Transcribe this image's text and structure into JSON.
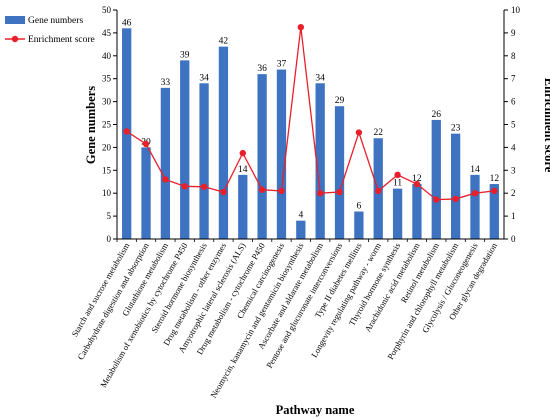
{
  "chart_data": {
    "type": "bar+line",
    "categories": [
      "Starch and sucrose metabolism",
      "Carbohydrate digestion and absorption",
      "Glutathione metabolism",
      "Metabolism of xenobiotics by cytochrome P450",
      "Steroid hormone biosynthesis",
      "Drug metabolism - other enzymes",
      "Amyotrophic lateral sclerosis (ALS)",
      "Drug metabolism - cytochrome P450",
      "Chemical carcinogenesis",
      "Neomycin, kanamycin and gentamicin biosynthesis",
      "Ascorbate and aldarate metabolism",
      "Pentose and glucuronate interconversions",
      "Type II diabetes mellitus",
      "Longevity regulating pathway - worm",
      "Thyroid hormone synthesis",
      "Arachidonic acid metabolism",
      "Retinol metabolism",
      "Porphyrin and chlorophyll metabolism",
      "Glycolysis / Gluconeogenesis",
      "Other glycan degradation"
    ],
    "series": [
      {
        "name": "Gene numbers",
        "kind": "bar",
        "axis": "left",
        "color": "#3d73c1",
        "values": [
          46,
          20,
          33,
          39,
          34,
          42,
          14,
          36,
          37,
          4,
          34,
          29,
          6,
          22,
          11,
          12,
          26,
          23,
          14,
          12
        ],
        "value_labels": [
          "46",
          "20",
          "33",
          "39",
          "34",
          "42",
          "14",
          "36",
          "37",
          "4",
          "34",
          "29",
          "6",
          "22",
          "11",
          "12",
          "26",
          "23",
          "14",
          "12"
        ]
      },
      {
        "name": "Enrichment score",
        "kind": "line",
        "axis": "right",
        "color": "#e8202a",
        "values": [
          4.7,
          4.15,
          2.6,
          2.3,
          2.28,
          2.05,
          3.75,
          2.15,
          2.1,
          9.25,
          2.0,
          2.05,
          4.65,
          2.1,
          2.8,
          2.4,
          1.72,
          1.75,
          2.0,
          2.1
        ]
      }
    ],
    "xlabel": "Pathway name",
    "ylabel": "Gene numbers",
    "y2label": "Enrichment score",
    "ylim": [
      0,
      50
    ],
    "y2lim": [
      0,
      10
    ],
    "yticks": [
      "0",
      "5",
      "10",
      "15",
      "20",
      "25",
      "30",
      "35",
      "40",
      "45",
      "50"
    ],
    "y2ticks": [
      "0",
      "1",
      "2",
      "3",
      "4",
      "5",
      "6",
      "7",
      "8",
      "9",
      "10"
    ],
    "legend": {
      "placement": "top-left"
    },
    "grid": false
  }
}
